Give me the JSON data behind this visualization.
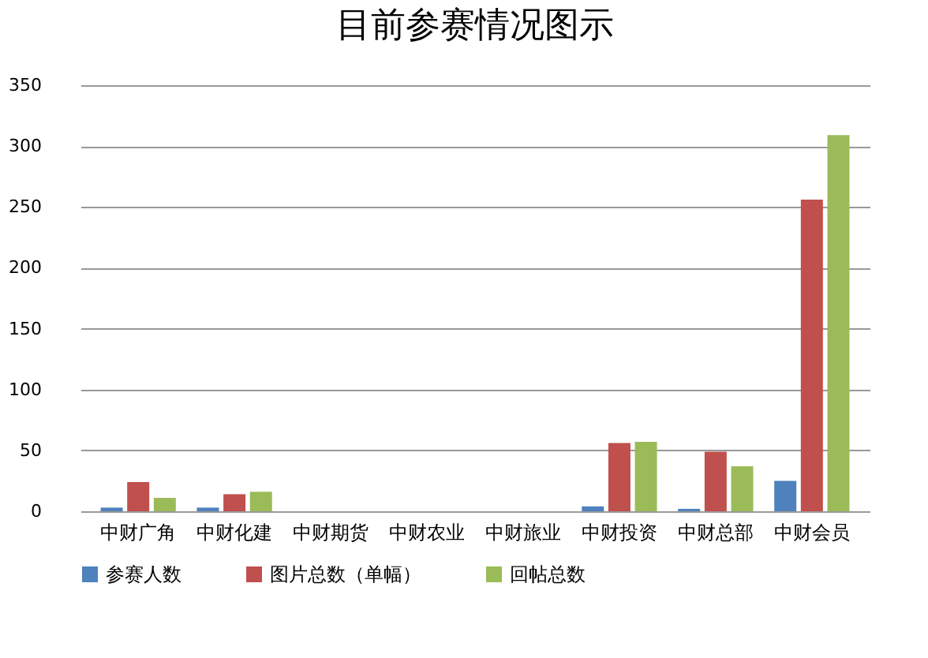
{
  "chart_data": {
    "type": "bar",
    "title": "目前参赛情况图示",
    "categories": [
      "中财广角",
      "中财化建",
      "中财期货",
      "中财农业",
      "中财旅业",
      "中财投资",
      "中财总部",
      "中财会员"
    ],
    "series": [
      {
        "name": "参赛人数",
        "color": "#4f81bd",
        "values": [
          3,
          3,
          0,
          0,
          0,
          4,
          2,
          25
        ]
      },
      {
        "name": "图片总数（单幅）",
        "color": "#c0504d",
        "values": [
          24,
          14,
          0,
          0,
          0,
          56,
          49,
          256
        ]
      },
      {
        "name": "回帖总数",
        "color": "#9bbb59",
        "values": [
          11,
          16,
          0,
          0,
          0,
          57,
          37,
          309
        ]
      }
    ],
    "ylim": [
      0,
      350
    ],
    "yticks": [
      0,
      50,
      100,
      150,
      200,
      250,
      300,
      350
    ],
    "grid": "y",
    "legend": "bottom"
  }
}
